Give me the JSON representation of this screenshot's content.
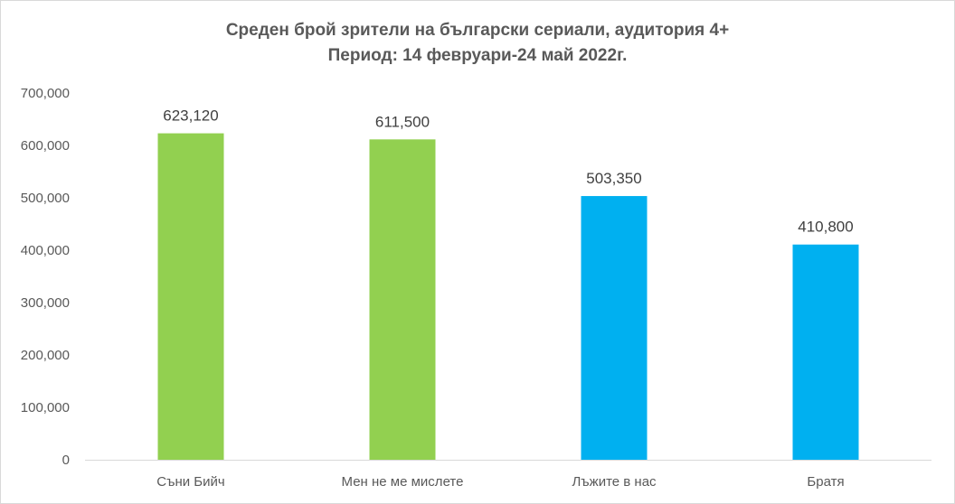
{
  "chart_data": {
    "type": "bar",
    "title": "Среден брой зрители на български сериали, аудитория 4+",
    "subtitle": "Период: 14 февруари-24 май 2022г.",
    "categories": [
      "Съни Бийч",
      "Мен не ме мислете",
      "Лъжите в нас",
      "Братя"
    ],
    "values": [
      623120,
      611500,
      503350,
      410800
    ],
    "data_labels": [
      "623,120",
      "611,500",
      "503,350",
      "410,800"
    ],
    "bar_colors": [
      "#92d050",
      "#92d050",
      "#00b0f0",
      "#00b0f0"
    ],
    "yticks": [
      0,
      100000,
      200000,
      300000,
      400000,
      500000,
      600000,
      700000
    ],
    "ytick_labels": [
      "0",
      "100,000",
      "200,000",
      "300,000",
      "400,000",
      "500,000",
      "600,000",
      "700,000"
    ],
    "ylim": [
      0,
      700000
    ],
    "xlabel": "",
    "ylabel": "",
    "grid": false,
    "legend": false
  }
}
